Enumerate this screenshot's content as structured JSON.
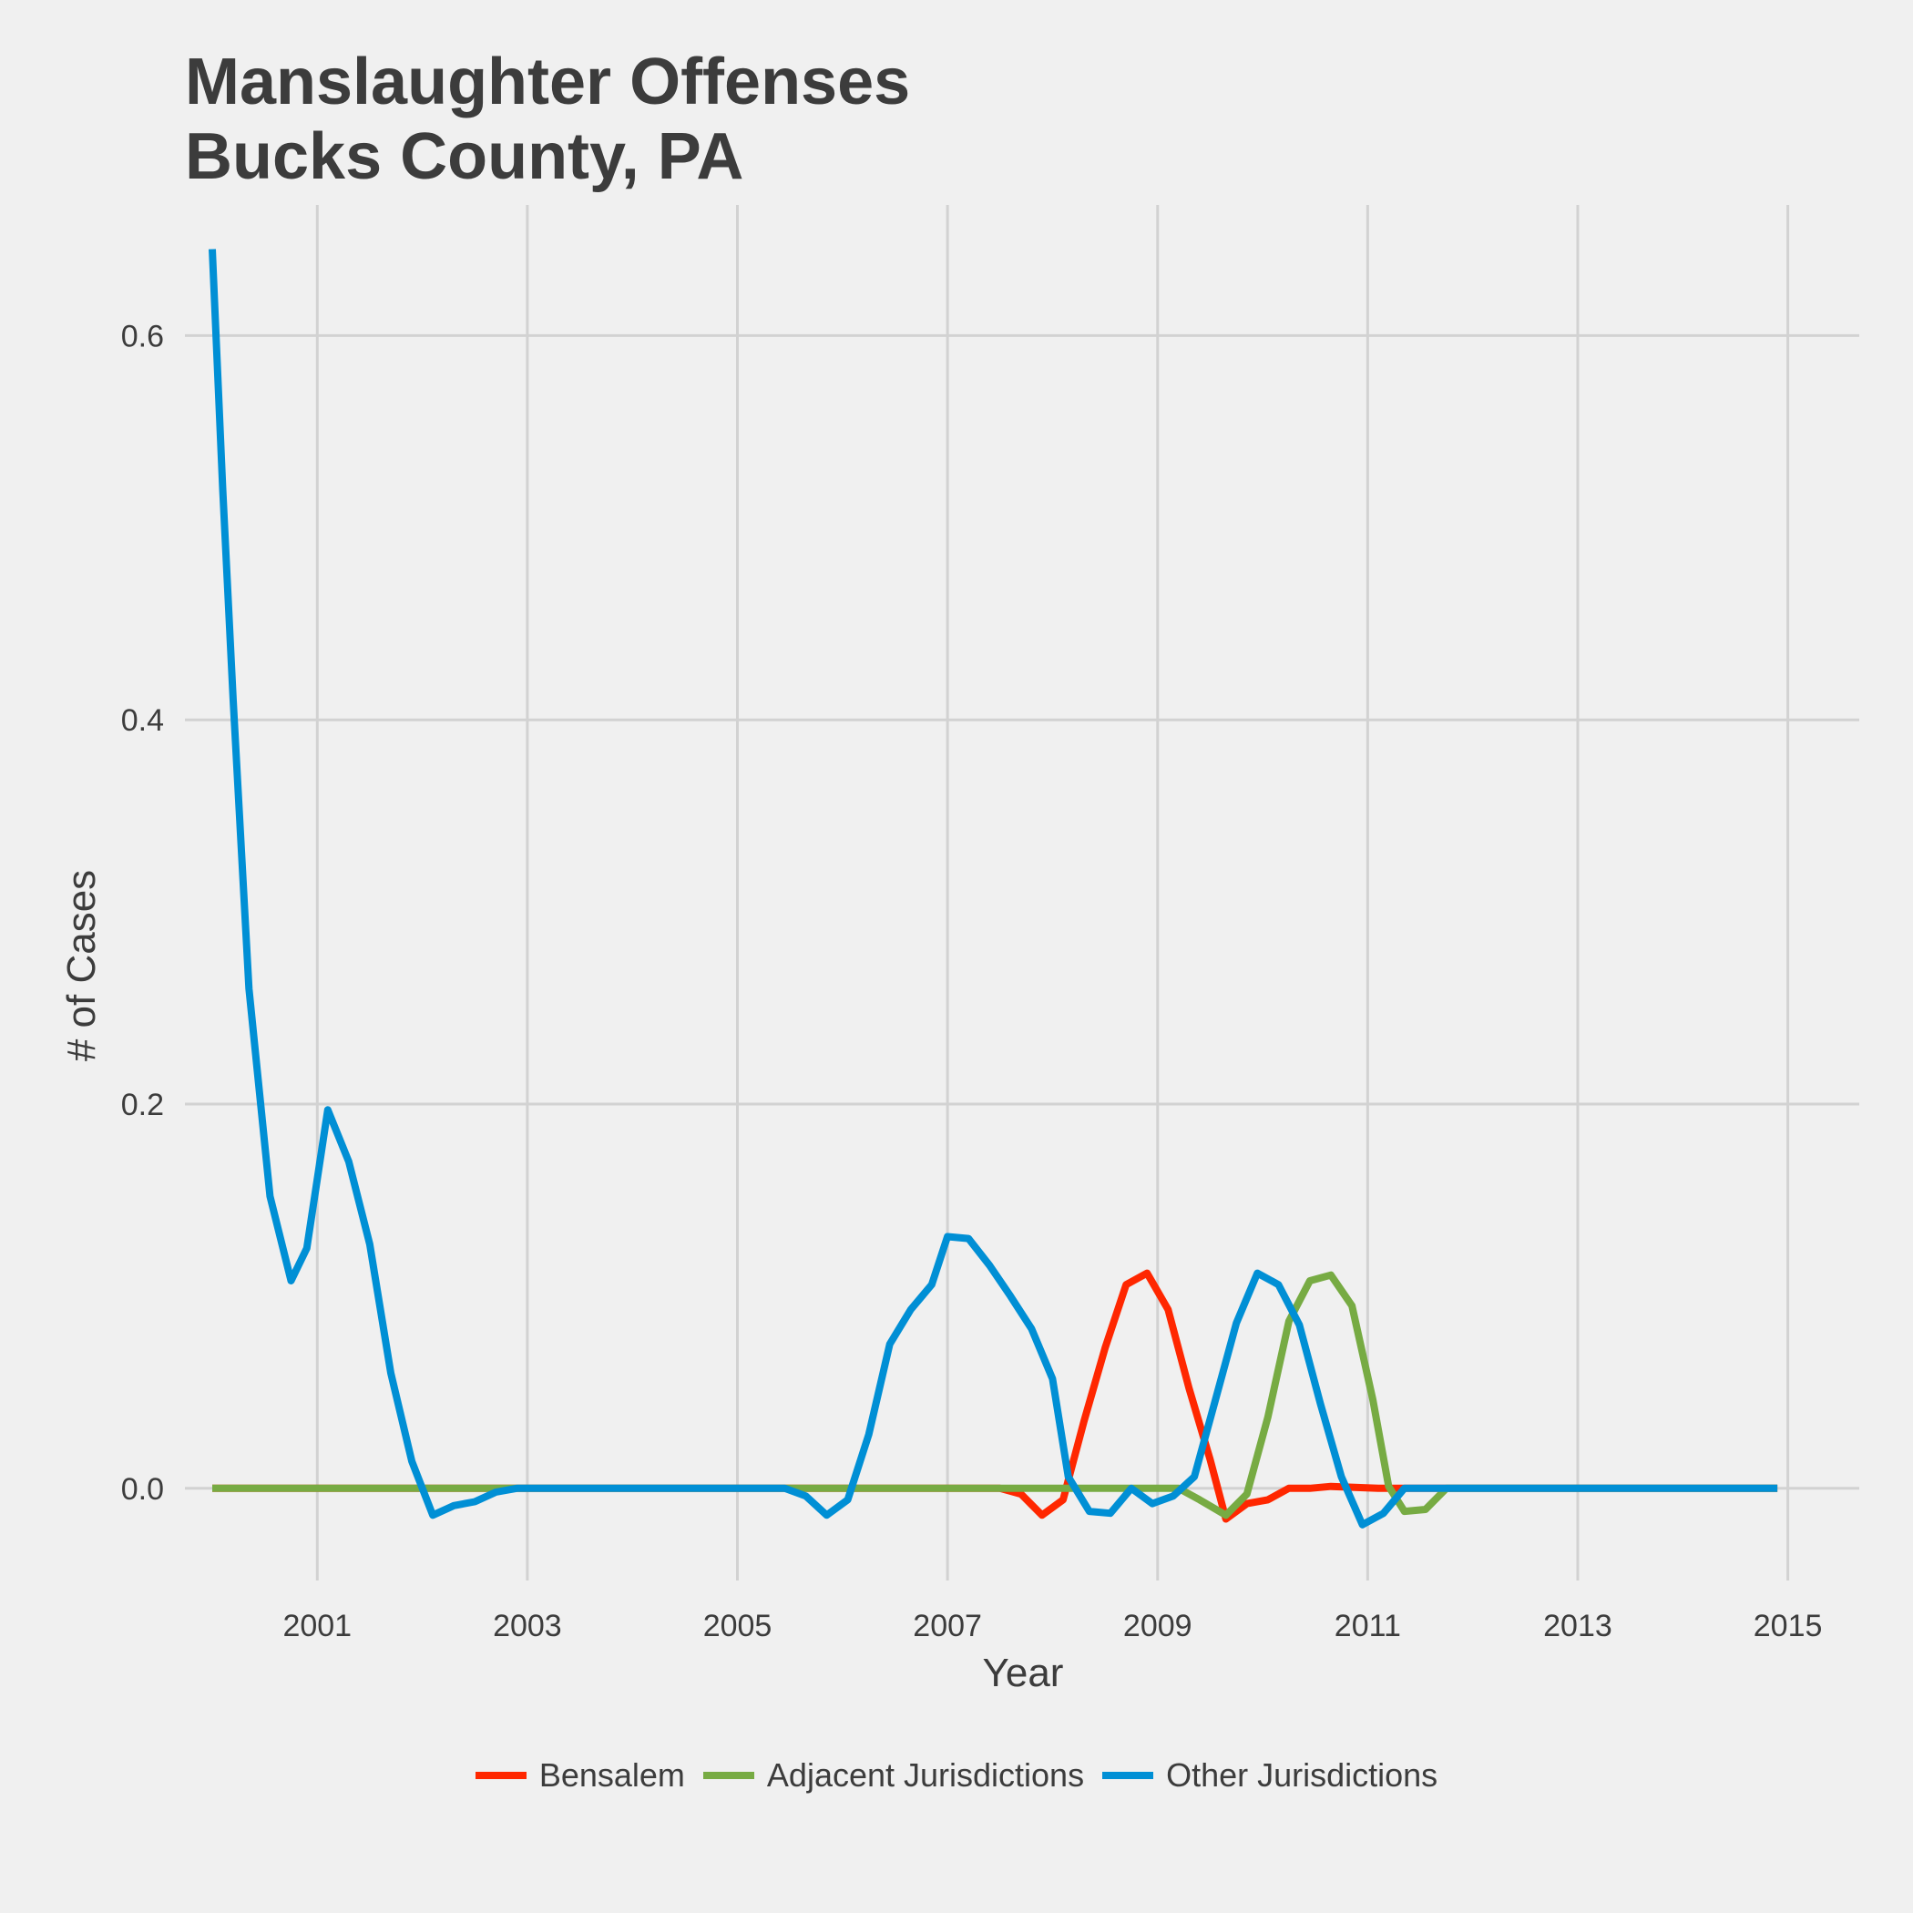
{
  "chart_data": {
    "type": "line",
    "title": "Manslaughter Offenses\nBucks County, PA",
    "title_lines": [
      "Manslaughter Offenses",
      "Bucks County, PA"
    ],
    "xlabel": "Year",
    "ylabel": "# of Cases",
    "xlim": [
      1999.74,
      2015.68
    ],
    "ylim": [
      -0.048,
      0.668
    ],
    "x_ticks": [
      2001,
      2003,
      2005,
      2007,
      2009,
      2011,
      2013,
      2015
    ],
    "y_ticks": [
      0.0,
      0.2,
      0.4,
      0.6
    ],
    "y_tick_labels": [
      "0.0",
      "0.2",
      "0.4",
      "0.6"
    ],
    "grid": true,
    "legend_position": "bottom",
    "series": [
      {
        "name": "Bensalem",
        "color": "#ff2700",
        "points": [
          [
            2000.0,
            0
          ],
          [
            2007.5,
            0
          ],
          [
            2007.7,
            -0.003
          ],
          [
            2007.9,
            -0.014
          ],
          [
            2008.1,
            -0.006
          ],
          [
            2008.3,
            0.035
          ],
          [
            2008.5,
            0.073
          ],
          [
            2008.7,
            0.106
          ],
          [
            2008.9,
            0.112
          ],
          [
            2009.1,
            0.093
          ],
          [
            2009.3,
            0.052
          ],
          [
            2009.5,
            0.015
          ],
          [
            2009.65,
            -0.016
          ],
          [
            2009.85,
            -0.008
          ],
          [
            2010.05,
            -0.006
          ],
          [
            2010.25,
            0
          ],
          [
            2010.45,
            0
          ],
          [
            2010.65,
            0.001
          ],
          [
            2011.1,
            0
          ],
          [
            2014.9,
            0
          ]
        ]
      },
      {
        "name": "Adjacent Jurisdictions",
        "color": "#77ab43",
        "points": [
          [
            2000.0,
            0
          ],
          [
            2009.2,
            0
          ],
          [
            2009.4,
            -0.006
          ],
          [
            2009.65,
            -0.014
          ],
          [
            2009.85,
            -0.003
          ],
          [
            2010.05,
            0.037
          ],
          [
            2010.25,
            0.087
          ],
          [
            2010.45,
            0.108
          ],
          [
            2010.65,
            0.111
          ],
          [
            2010.85,
            0.095
          ],
          [
            2011.05,
            0.046
          ],
          [
            2011.2,
            0.001
          ],
          [
            2011.35,
            -0.012
          ],
          [
            2011.55,
            -0.011
          ],
          [
            2011.75,
            0
          ],
          [
            2014.9,
            0
          ]
        ]
      },
      {
        "name": "Other Jurisdictions",
        "color": "#008fd5",
        "points": [
          [
            2000.0,
            0.645
          ],
          [
            2000.1,
            0.52
          ],
          [
            2000.2,
            0.41
          ],
          [
            2000.35,
            0.26
          ],
          [
            2000.55,
            0.152
          ],
          [
            2000.75,
            0.108
          ],
          [
            2000.9,
            0.125
          ],
          [
            2001.1,
            0.197
          ],
          [
            2001.3,
            0.17
          ],
          [
            2001.5,
            0.127
          ],
          [
            2001.7,
            0.06
          ],
          [
            2001.9,
            0.014
          ],
          [
            2002.1,
            -0.014
          ],
          [
            2002.3,
            -0.009
          ],
          [
            2002.5,
            -0.007
          ],
          [
            2002.7,
            -0.002
          ],
          [
            2002.9,
            0
          ],
          [
            2005.45,
            0
          ],
          [
            2005.65,
            -0.004
          ],
          [
            2005.85,
            -0.014
          ],
          [
            2006.05,
            -0.006
          ],
          [
            2006.25,
            0.028
          ],
          [
            2006.45,
            0.075
          ],
          [
            2006.65,
            0.093
          ],
          [
            2006.85,
            0.106
          ],
          [
            2007.0,
            0.131
          ],
          [
            2007.2,
            0.13
          ],
          [
            2007.4,
            0.116
          ],
          [
            2007.6,
            0.1
          ],
          [
            2007.8,
            0.083
          ],
          [
            2008.0,
            0.057
          ],
          [
            2008.15,
            0.006
          ],
          [
            2008.35,
            -0.012
          ],
          [
            2008.55,
            -0.013
          ],
          [
            2008.75,
            0
          ],
          [
            2008.95,
            -0.008
          ],
          [
            2009.15,
            -0.004
          ],
          [
            2009.35,
            0.006
          ],
          [
            2009.55,
            0.046
          ],
          [
            2009.75,
            0.086
          ],
          [
            2009.95,
            0.112
          ],
          [
            2010.15,
            0.106
          ],
          [
            2010.35,
            0.085
          ],
          [
            2010.55,
            0.044
          ],
          [
            2010.75,
            0.006
          ],
          [
            2010.95,
            -0.019
          ],
          [
            2011.15,
            -0.013
          ],
          [
            2011.35,
            0
          ],
          [
            2014.9,
            0
          ]
        ]
      }
    ]
  }
}
